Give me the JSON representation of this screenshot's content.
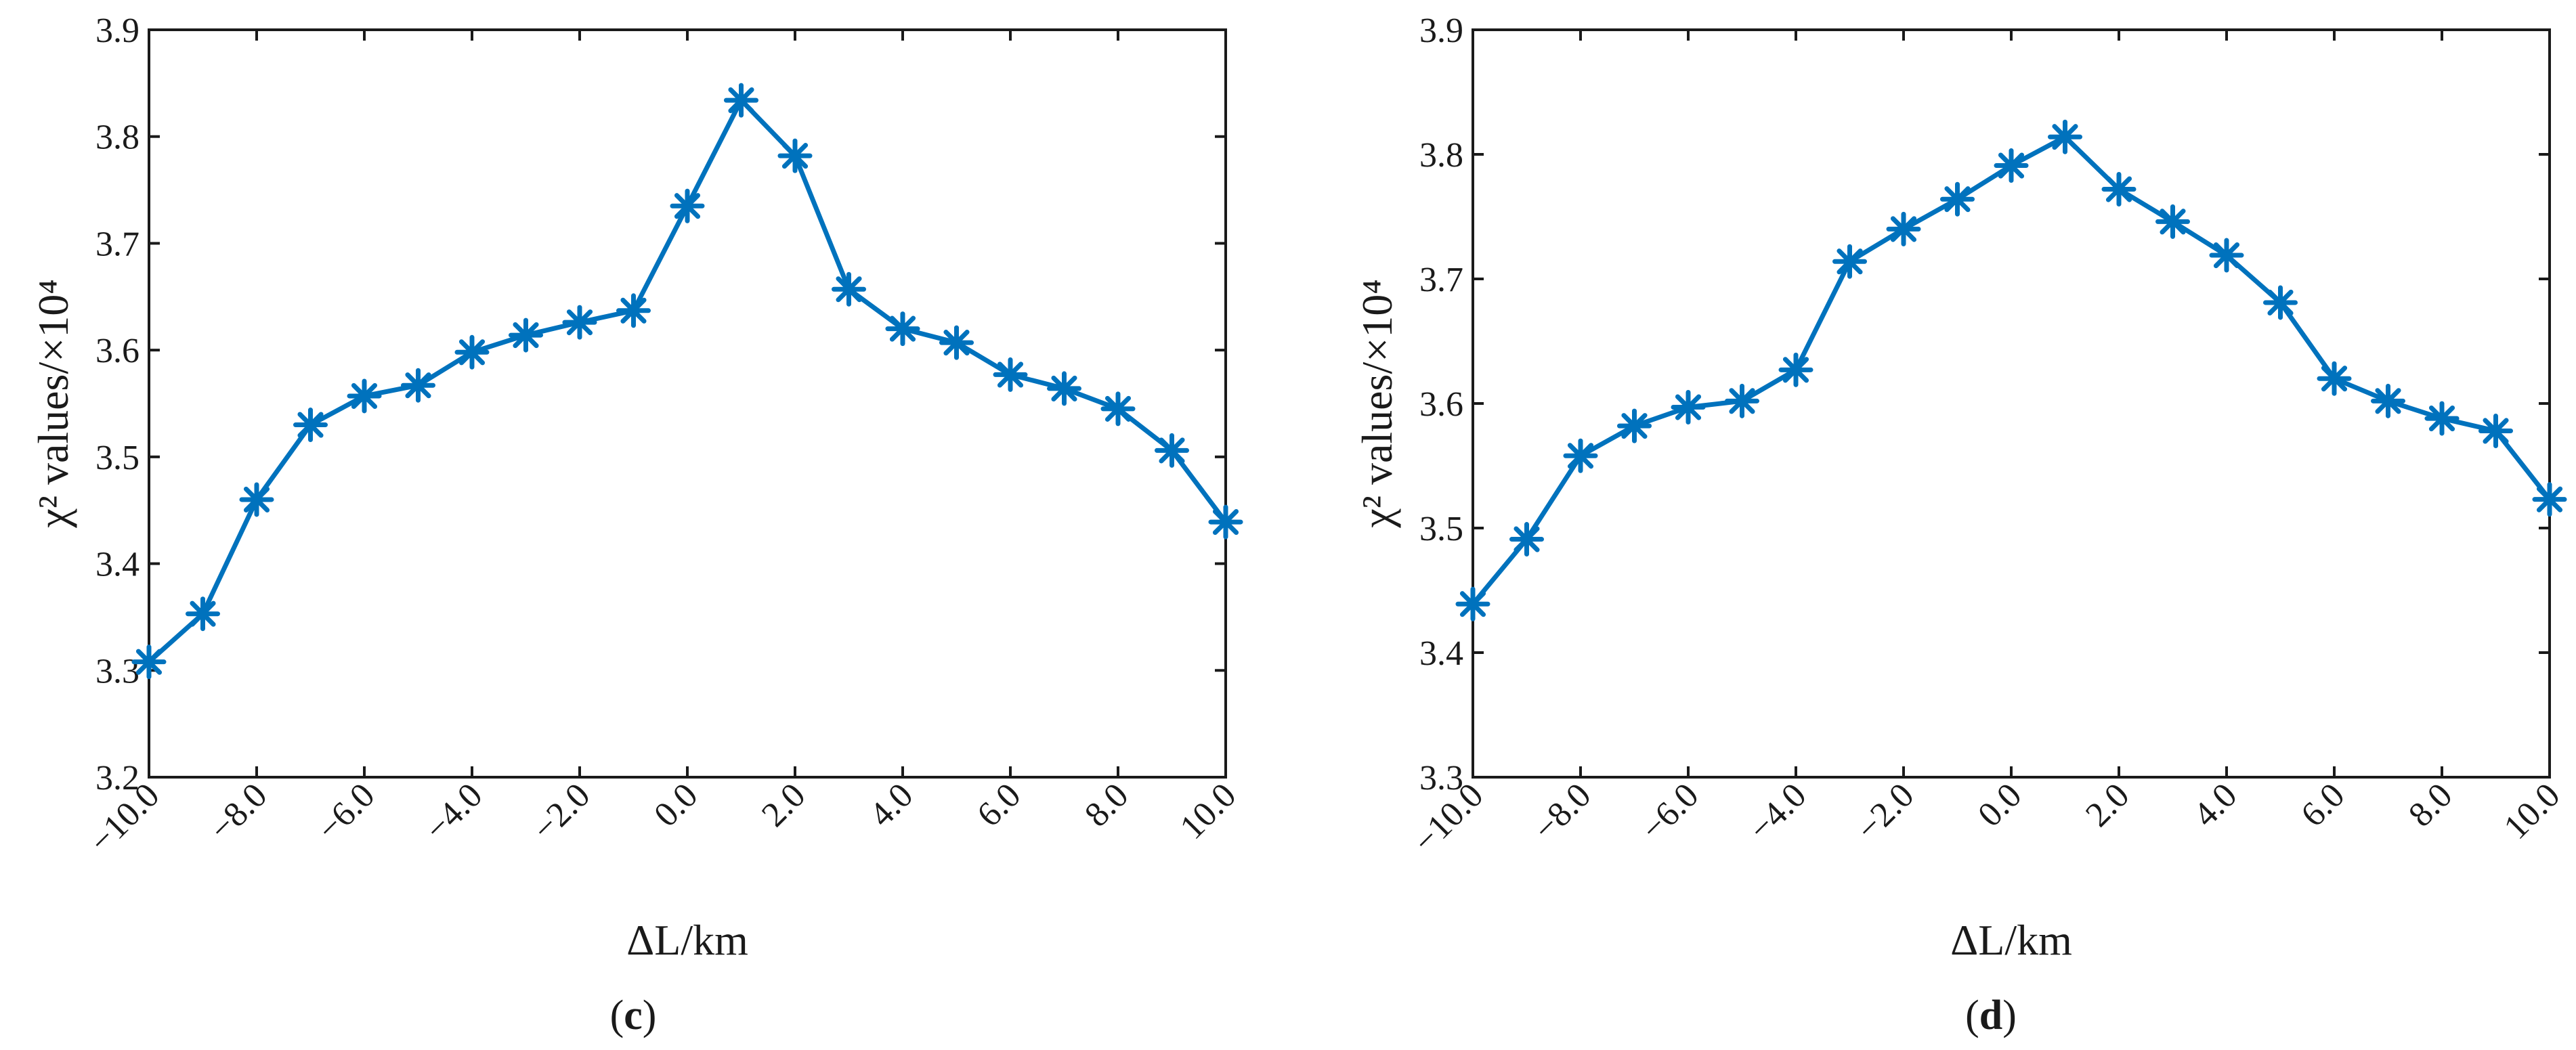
{
  "chart_data": [
    {
      "type": "line",
      "panel_label": "c",
      "xlabel": "ΔL/km",
      "ylabel": "χ² values/×10⁴",
      "x_tick_labels": [
        "−10.0",
        "−8.0",
        "−6.0",
        "−4.0",
        "−2.0",
        "0.0",
        "2.0",
        "4.0",
        "6.0",
        "8.0",
        "10.0"
      ],
      "y_tick_labels": [
        "3.2",
        "3.3",
        "3.4",
        "3.5",
        "3.6",
        "3.7",
        "3.8",
        "3.9"
      ],
      "xlim": [
        -10,
        10
      ],
      "ylim": [
        3.2,
        3.9
      ],
      "grid": false,
      "line_color": "#0072BD",
      "marker": "asterisk",
      "series": [
        {
          "x": [
            -10,
            -9,
            -8,
            -7,
            -6,
            -5,
            -4,
            -3,
            -2,
            -1,
            0,
            1,
            2,
            3,
            4,
            5,
            6,
            7,
            8,
            9,
            10
          ],
          "y": [
            3.308,
            3.353,
            3.46,
            3.53,
            3.557,
            3.567,
            3.598,
            3.614,
            3.626,
            3.637,
            3.735,
            3.834,
            3.782,
            3.657,
            3.62,
            3.607,
            3.577,
            3.564,
            3.545,
            3.506,
            3.439
          ]
        }
      ]
    },
    {
      "type": "line",
      "panel_label": "d",
      "xlabel": "ΔL/km",
      "ylabel": "χ² values/×10⁴",
      "x_tick_labels": [
        "−10.0",
        "−8.0",
        "−6.0",
        "−4.0",
        "−2.0",
        "0.0",
        "2.0",
        "4.0",
        "6.0",
        "8.0",
        "10.0"
      ],
      "y_tick_labels": [
        "3.3",
        "3.4",
        "3.5",
        "3.6",
        "3.7",
        "3.8",
        "3.9"
      ],
      "xlim": [
        -10,
        10
      ],
      "ylim": [
        3.3,
        3.9
      ],
      "grid": false,
      "line_color": "#0072BD",
      "marker": "asterisk",
      "series": [
        {
          "x": [
            -10,
            -9,
            -8,
            -7,
            -6,
            -5,
            -4,
            -3,
            -2,
            -1,
            0,
            1,
            2,
            3,
            4,
            5,
            6,
            7,
            8,
            9,
            10
          ],
          "y": [
            3.439,
            3.491,
            3.558,
            3.582,
            3.597,
            3.602,
            3.627,
            3.714,
            3.74,
            3.764,
            3.791,
            3.814,
            3.772,
            3.746,
            3.719,
            3.681,
            3.62,
            3.602,
            3.588,
            3.578,
            3.523
          ]
        }
      ]
    }
  ]
}
